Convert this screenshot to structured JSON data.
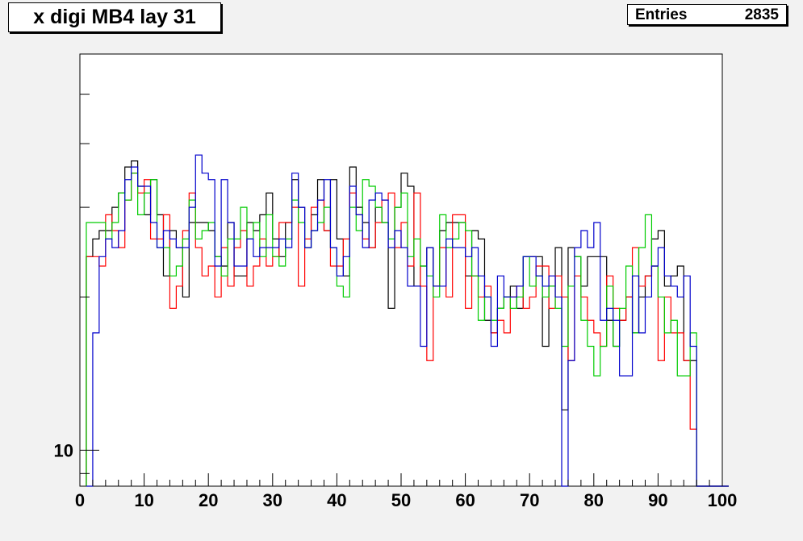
{
  "title": "x digi MB4 lay 31",
  "stats": {
    "label": "Entries",
    "value": "2835"
  },
  "chart_data": {
    "type": "histogram",
    "title": "x digi MB4 lay 31",
    "xlim": [
      0,
      100
    ],
    "ylim": [
      8.5,
      60
    ],
    "yscale": "log",
    "x_ticks": [
      "0",
      "10",
      "20",
      "30",
      "40",
      "50",
      "60",
      "70",
      "80",
      "90",
      "100"
    ],
    "y_tick_labels": [
      "10"
    ],
    "bin_edges_start": 1,
    "bin_width": 1,
    "grid": false,
    "series": [
      {
        "color": "#000000",
        "values": [
          24,
          26,
          27,
          27,
          30,
          32,
          36,
          37,
          33,
          29,
          34,
          29,
          22,
          27,
          25,
          20,
          28,
          28,
          28,
          27,
          24,
          23,
          28,
          22,
          22,
          28,
          27,
          29,
          32,
          26,
          24,
          28,
          34,
          30,
          25,
          29,
          34,
          27,
          34,
          26,
          22,
          36,
          30,
          28,
          25,
          30,
          28,
          19,
          30,
          35,
          33,
          21,
          23,
          25,
          21,
          27,
          28,
          28,
          28,
          22,
          27,
          26,
          18,
          17,
          19,
          20,
          21,
          19,
          24,
          24,
          24,
          16,
          21,
          25,
          12,
          25,
          24,
          21,
          24,
          24,
          24,
          18,
          16,
          18,
          20,
          17,
          20,
          22,
          26,
          27,
          21,
          22,
          23,
          15,
          15,
          8,
          0,
          0,
          0,
          0
        ]
      },
      {
        "color": "#ff0000",
        "values": [
          24,
          24,
          23,
          29,
          27,
          25,
          31,
          35,
          32,
          34,
          26,
          26,
          29,
          19,
          21,
          27,
          32,
          25,
          22,
          23,
          20,
          25,
          21,
          25,
          27,
          21,
          23,
          26,
          23,
          24,
          28,
          28,
          30,
          21,
          26,
          30,
          31,
          27,
          23,
          23,
          26,
          32,
          29,
          26,
          25,
          28,
          31,
          32,
          25,
          28,
          23,
          32,
          21,
          15,
          21,
          25,
          20,
          29,
          29,
          19,
          22,
          20,
          21,
          17,
          18,
          17,
          20,
          21,
          19,
          20,
          23,
          23,
          19,
          22,
          20,
          15,
          22,
          20,
          18,
          17,
          16,
          22,
          19,
          18,
          20,
          25,
          21,
          22,
          23,
          15,
          20,
          17,
          17,
          15,
          11,
          0,
          0,
          0,
          0,
          0
        ]
      },
      {
        "color": "#00cc00",
        "values": [
          28,
          28,
          28,
          26,
          28,
          32,
          31,
          35,
          29,
          32,
          34,
          25,
          25,
          22,
          23,
          26,
          31,
          26,
          27,
          28,
          24,
          22,
          26,
          26,
          30,
          26,
          28,
          24,
          29,
          24,
          23,
          26,
          31,
          28,
          25,
          27,
          28,
          30,
          25,
          21,
          20,
          30,
          27,
          34,
          33,
          30,
          28,
          26,
          30,
          32,
          24,
          26,
          23,
          22,
          20,
          29,
          25,
          26,
          28,
          27,
          22,
          18,
          20,
          18,
          19,
          20,
          19,
          20,
          24,
          21,
          22,
          20,
          21,
          19,
          16,
          21,
          24,
          18,
          16,
          14,
          16,
          21,
          16,
          19,
          23,
          17,
          25,
          29,
          23,
          20,
          17,
          18,
          14,
          14,
          17,
          0,
          0,
          0,
          0,
          0
        ]
      },
      {
        "color": "#0000cc",
        "values": [
          8,
          17,
          24,
          26,
          25,
          27,
          34,
          36,
          33,
          33,
          28,
          25,
          27,
          26,
          25,
          25,
          30,
          38,
          35,
          34,
          23,
          34,
          28,
          23,
          23,
          26,
          24,
          25,
          25,
          25,
          26,
          25,
          35,
          30,
          25,
          27,
          31,
          34,
          25,
          22,
          24,
          33,
          29,
          25,
          31,
          32,
          31,
          25,
          27,
          25,
          21,
          21,
          16,
          25,
          21,
          21,
          26,
          25,
          25,
          24,
          25,
          22,
          20,
          16,
          22,
          20,
          20,
          21,
          24,
          24,
          22,
          21,
          22,
          20,
          0,
          15,
          25,
          27,
          25,
          28,
          18,
          19,
          18,
          14,
          14,
          22,
          17,
          20,
          23,
          25,
          22,
          21,
          20,
          22,
          16,
          0,
          0,
          0,
          0,
          0
        ]
      }
    ]
  }
}
